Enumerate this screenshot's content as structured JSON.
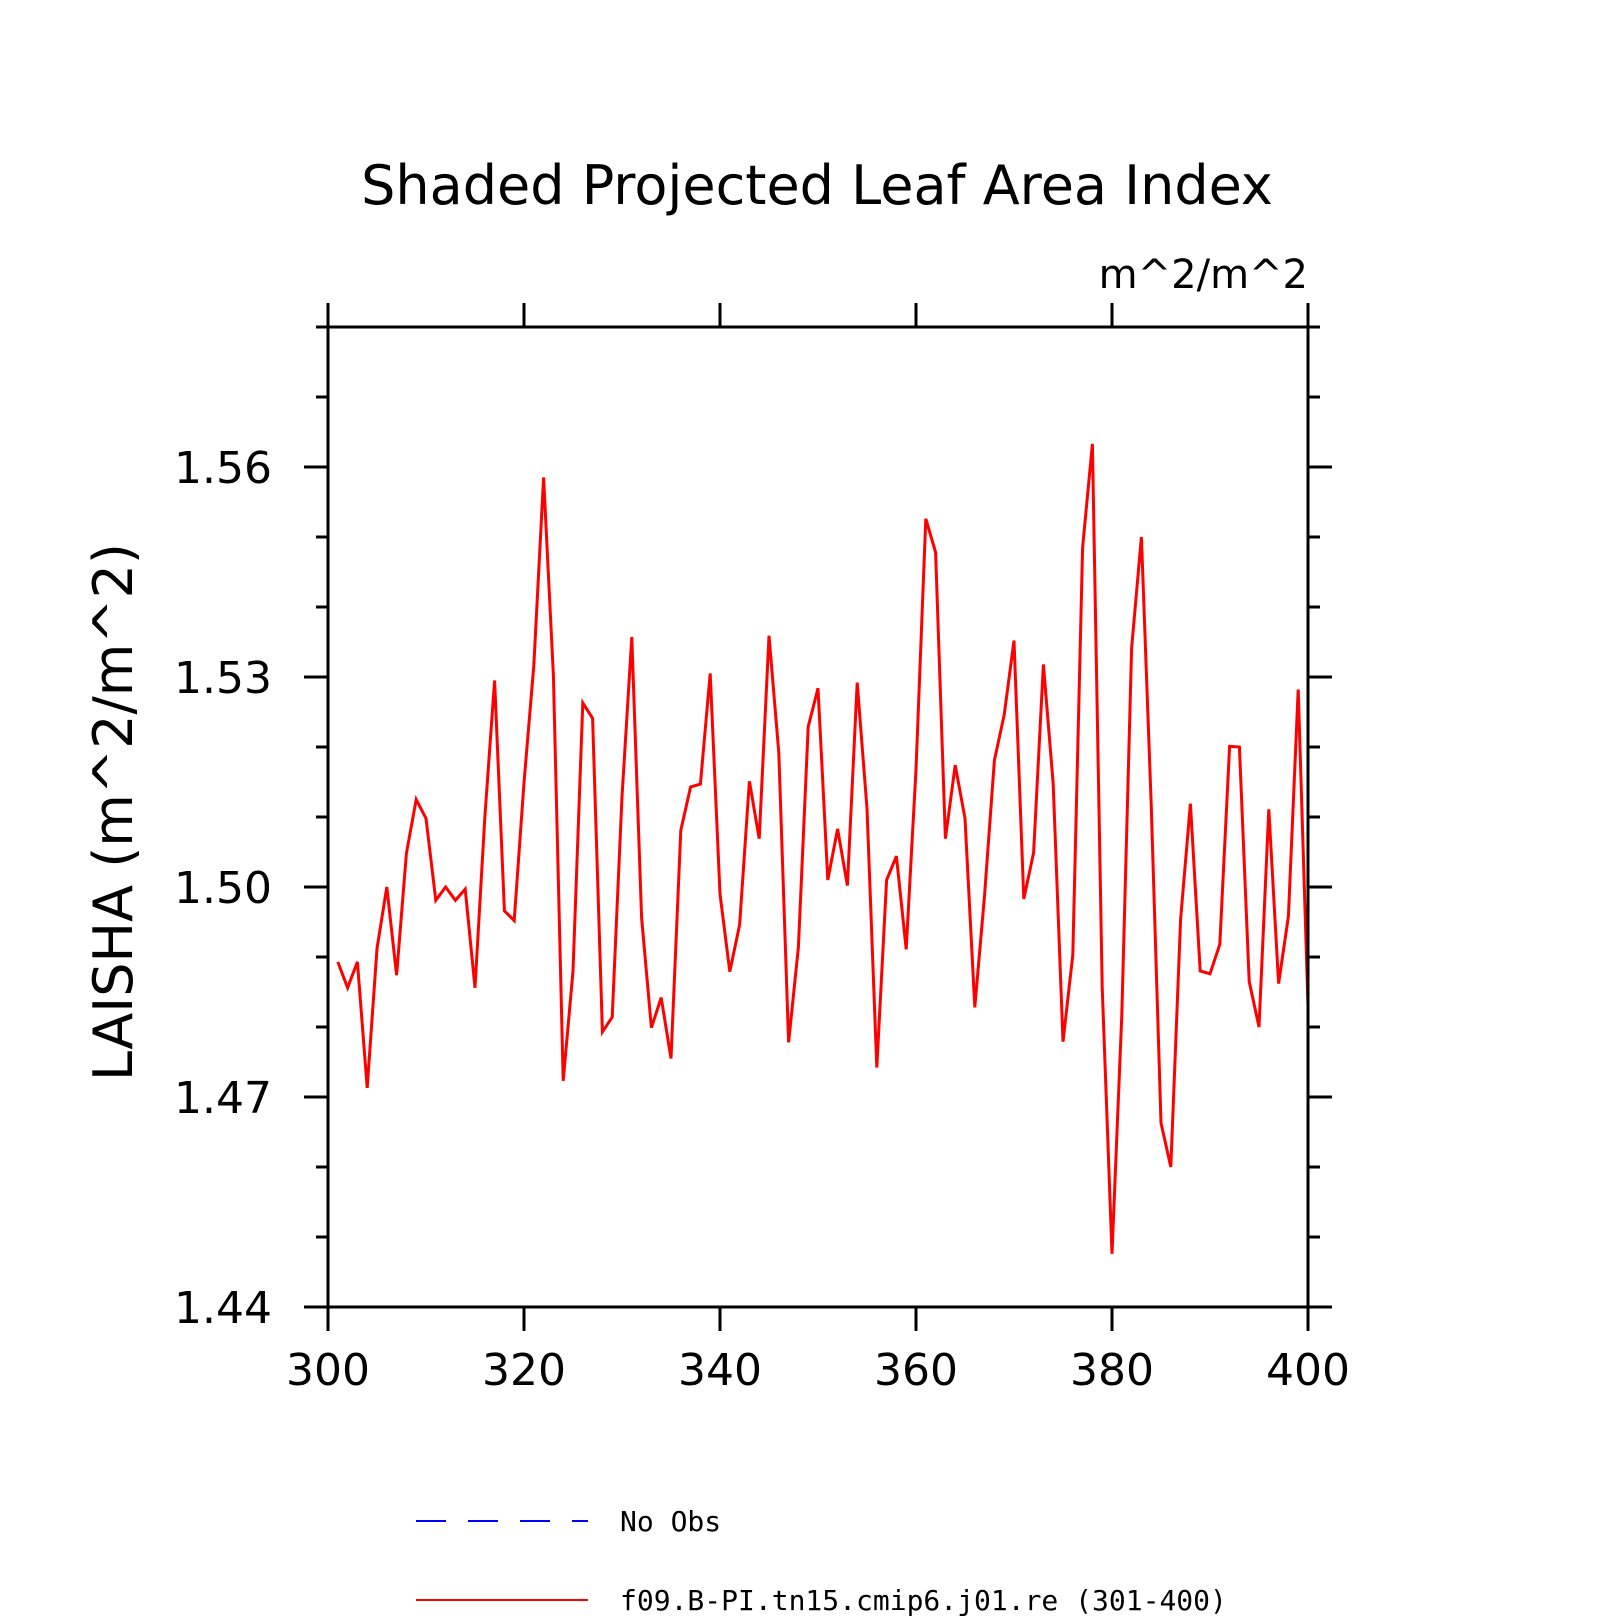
{
  "chart_data": {
    "type": "line",
    "title": "Shaded Projected Leaf Area Index",
    "units": "m^2/m^2",
    "ylabel": "LAISHA   (m^2/m^2)",
    "xlabel": "",
    "xlim": [
      300,
      400
    ],
    "ylim": [
      1.44,
      1.58
    ],
    "xticks": [
      300,
      320,
      340,
      360,
      380,
      400
    ],
    "xtick_labels": [
      "300",
      "320",
      "340",
      "360",
      "380",
      "400"
    ],
    "yticks": [
      1.44,
      1.47,
      1.5,
      1.53,
      1.56
    ],
    "ytick_labels": [
      "1.44",
      "1.47",
      "1.50",
      "1.53",
      "1.56"
    ],
    "grid": false,
    "legend_position": "bottom",
    "series": [
      {
        "name": "No Obs",
        "color": "#0000ff",
        "dash": "dashed",
        "x": [],
        "y": []
      },
      {
        "name": "f09.B-PI.tn15.cmip6.j01.re (301-400)",
        "color": "#ff0000",
        "dash": "solid",
        "x": [
          301,
          302,
          303,
          304,
          305,
          306,
          307,
          308,
          309,
          310,
          311,
          312,
          313,
          314,
          315,
          316,
          317,
          318,
          319,
          320,
          321,
          322,
          323,
          324,
          325,
          326,
          327,
          328,
          329,
          330,
          331,
          332,
          333,
          334,
          335,
          336,
          337,
          338,
          339,
          340,
          341,
          342,
          343,
          344,
          345,
          346,
          347,
          348,
          349,
          350,
          351,
          352,
          353,
          354,
          355,
          356,
          357,
          358,
          359,
          360,
          361,
          362,
          363,
          364,
          365,
          366,
          367,
          368,
          369,
          370,
          371,
          372,
          373,
          374,
          375,
          376,
          377,
          378,
          379,
          380,
          381,
          382,
          383,
          384,
          385,
          386,
          387,
          388,
          389,
          390,
          391,
          392,
          393,
          394,
          395,
          396,
          397,
          398,
          399,
          400
        ],
        "y": [
          1.4893,
          1.4856,
          1.4893,
          1.4713,
          1.4912,
          1.5,
          1.4874,
          1.5048,
          1.5125,
          1.5098,
          1.4981,
          1.5,
          1.4981,
          1.4997,
          1.4856,
          1.5099,
          1.5295,
          1.4966,
          1.4952,
          1.5149,
          1.5316,
          1.5585,
          1.5302,
          1.4723,
          1.488,
          1.5263,
          1.5241,
          1.4793,
          1.4814,
          1.5129,
          1.5357,
          1.4956,
          1.4799,
          1.4842,
          1.4755,
          1.5081,
          1.5143,
          1.5147,
          1.5305,
          1.499,
          1.4879,
          1.4946,
          1.5151,
          1.5069,
          1.5359,
          1.5192,
          1.4778,
          1.4914,
          1.5229,
          1.5284,
          1.501,
          1.5083,
          1.5002,
          1.5292,
          1.5112,
          1.4742,
          1.501,
          1.5044,
          1.4911,
          1.5168,
          1.5526,
          1.5478,
          1.5069,
          1.5174,
          1.5098,
          1.4828,
          1.4989,
          1.5181,
          1.5246,
          1.5352,
          1.4983,
          1.5049,
          1.5318,
          1.5147,
          1.4779,
          1.4903,
          1.5485,
          1.5633,
          1.4857,
          1.4476,
          1.4817,
          1.5341,
          1.55,
          1.5118,
          1.4663,
          1.46,
          1.4954,
          1.5119,
          1.488,
          1.4876,
          1.4918,
          1.5201,
          1.52,
          1.4865,
          1.48,
          1.5111,
          1.4862,
          1.4958,
          1.5282,
          1.483
        ]
      }
    ]
  }
}
